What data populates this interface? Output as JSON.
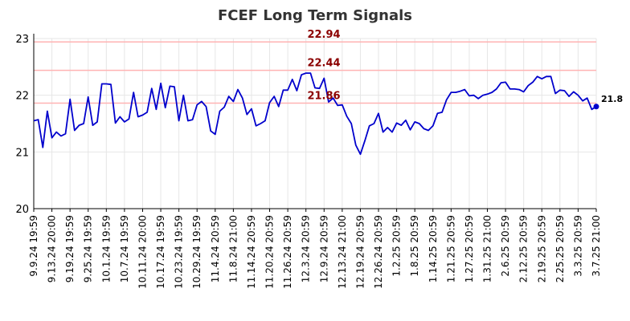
{
  "chart_data": {
    "type": "line",
    "title": "FCEF Long Term Signals",
    "xlabel": "",
    "ylabel": "",
    "ylim": [
      20,
      23
    ],
    "yticks": [
      20,
      21,
      22,
      23
    ],
    "xticks": [
      "9.9.24 19:59",
      "9.13.24 20:00",
      "9.19.24 19:59",
      "9.25.24 19:59",
      "10.1.24 19:59",
      "10.7.24 19:59",
      "10.11.24 20:00",
      "10.17.24 19:59",
      "10.23.24 19:59",
      "10.29.24 19:59",
      "11.4.24 20:59",
      "11.8.24 21:00",
      "11.14.24 20:59",
      "11.20.24 20:59",
      "11.26.24 20:59",
      "12.3.24 20:59",
      "12.9.24 20:59",
      "12.13.24 21:00",
      "12.19.24 20:59",
      "12.26.24 20:59",
      "1.2.25 20:59",
      "1.8.25 20:59",
      "1.14.25 20:59",
      "1.21.25 20:59",
      "1.27.25 20:59",
      "1.31.25 21:00",
      "2.6.25 20:59",
      "2.12.25 20:59",
      "2.19.25 20:59",
      "2.25.25 20:59",
      "3.3.25 20:59",
      "3.7.25 21:00"
    ],
    "grid": true,
    "line_color": "#0000cc",
    "level_color": "#ffb3b3",
    "level_label_color": "#8b0000",
    "levels": [
      {
        "value": 22.94,
        "label": "22.94"
      },
      {
        "value": 22.44,
        "label": "22.44"
      },
      {
        "value": 21.86,
        "label": "21.86"
      }
    ],
    "last_label": "21.8",
    "series": [
      {
        "values": [
          21.55,
          21.57,
          21.08,
          21.72,
          21.25,
          21.35,
          21.28,
          21.32,
          21.93,
          21.38,
          21.47,
          21.5,
          21.97,
          21.47,
          21.53,
          22.2,
          22.2,
          22.19,
          21.51,
          21.62,
          21.53,
          21.58,
          22.05,
          21.62,
          21.65,
          21.7,
          22.12,
          21.75,
          22.21,
          21.78,
          22.16,
          22.15,
          21.55,
          22.0,
          21.55,
          21.57,
          21.83,
          21.89,
          21.8,
          21.37,
          21.31,
          21.72,
          21.79,
          21.98,
          21.89,
          22.1,
          21.95,
          21.66,
          21.76,
          21.46,
          21.5,
          21.55,
          21.87,
          21.98,
          21.8,
          22.09,
          22.09,
          22.28,
          22.08,
          22.36,
          22.39,
          22.39,
          22.13,
          22.12,
          22.3,
          21.88,
          21.95,
          21.82,
          21.83,
          21.63,
          21.5,
          21.12,
          20.96,
          21.2,
          21.46,
          21.5,
          21.68,
          21.35,
          21.43,
          21.35,
          21.51,
          21.47,
          21.56,
          21.39,
          21.53,
          21.5,
          21.41,
          21.38,
          21.46,
          21.68,
          21.7,
          21.92,
          22.05,
          22.05,
          22.07,
          22.1,
          21.99,
          22.0,
          21.94,
          22.0,
          22.02,
          22.05,
          22.11,
          22.22,
          22.23,
          22.11,
          22.11,
          22.1,
          22.06,
          22.17,
          22.23,
          22.33,
          22.29,
          22.33,
          22.33,
          22.03,
          22.09,
          22.08,
          21.98,
          22.06,
          22.0,
          21.9,
          21.95,
          21.75,
          21.8
        ]
      }
    ]
  }
}
